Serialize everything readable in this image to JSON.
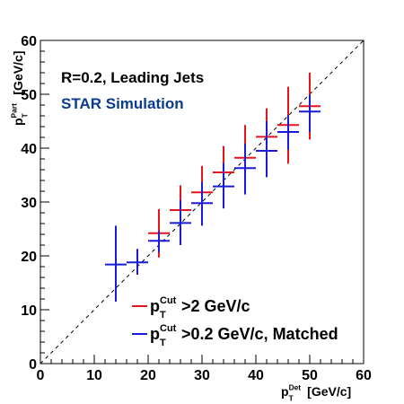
{
  "chart_data": {
    "type": "scatter",
    "title": "",
    "xlabel": {
      "main": "p",
      "sub": "T",
      "sup": "Det",
      "unit": "[GeV/c]"
    },
    "ylabel": {
      "main": "p",
      "sub": "T",
      "sup": "Part",
      "unit": "[GeV/c]"
    },
    "xlim": [
      0,
      60
    ],
    "ylim": [
      0,
      60
    ],
    "xticks": [
      0,
      10,
      20,
      30,
      40,
      50,
      60
    ],
    "yticks": [
      0,
      10,
      20,
      30,
      40,
      50,
      60
    ],
    "grid": false,
    "diagonal": true,
    "annotations": [
      {
        "text": "R=0.2, Leading Jets",
        "color": "#000000"
      },
      {
        "text": "STAR Simulation",
        "color": "#0b3b8c"
      }
    ],
    "legend_position": "bottom-right",
    "series": [
      {
        "name": "p_T^Cut>2 GeV/c",
        "legend": {
          "main": "p",
          "sub": "T",
          "sup": "Cut",
          "rest": ">2 GeV/c"
        },
        "color": "#e8141a",
        "points": [
          {
            "x": 22,
            "y": 24.2,
            "xerr": 2,
            "ylo": 19.7,
            "yhi": 28.7
          },
          {
            "x": 26,
            "y": 28.5,
            "xerr": 2,
            "ylo": 24.0,
            "yhi": 33.1
          },
          {
            "x": 30,
            "y": 31.8,
            "xerr": 2,
            "ylo": 27.0,
            "yhi": 36.7
          },
          {
            "x": 34,
            "y": 35.5,
            "xerr": 2,
            "ylo": 30.6,
            "yhi": 40.4
          },
          {
            "x": 38,
            "y": 38.2,
            "xerr": 2,
            "ylo": 32.5,
            "yhi": 44.3
          },
          {
            "x": 42,
            "y": 42.1,
            "xerr": 2,
            "ylo": 36.8,
            "yhi": 47.4
          },
          {
            "x": 46,
            "y": 44.3,
            "xerr": 2,
            "ylo": 37.1,
            "yhi": 51.4
          },
          {
            "x": 50,
            "y": 47.8,
            "xerr": 2,
            "ylo": 41.6,
            "yhi": 54.0
          }
        ]
      },
      {
        "name": "p_T^Cut>0.2 GeV/c, Matched",
        "legend": {
          "main": "p",
          "sub": "T",
          "sup": "Cut",
          "rest": ">0.2 GeV/c, Matched"
        },
        "color": "#1a1adb",
        "points": [
          {
            "x": 14,
            "y": 18.4,
            "xerr": 2,
            "ylo": 11.5,
            "yhi": 25.6
          },
          {
            "x": 18,
            "y": 18.8,
            "xerr": 2,
            "ylo": 16.5,
            "yhi": 21.3
          },
          {
            "x": 22,
            "y": 22.8,
            "xerr": 2,
            "ylo": 20.7,
            "yhi": 24.6
          },
          {
            "x": 26,
            "y": 26.1,
            "xerr": 2,
            "ylo": 22.0,
            "yhi": 30.3
          },
          {
            "x": 30,
            "y": 29.8,
            "xerr": 2,
            "ylo": 25.6,
            "yhi": 33.7
          },
          {
            "x": 34,
            "y": 32.9,
            "xerr": 2,
            "ylo": 28.8,
            "yhi": 37.2
          },
          {
            "x": 38,
            "y": 36.3,
            "xerr": 2,
            "ylo": 31.4,
            "yhi": 40.8
          },
          {
            "x": 42,
            "y": 39.5,
            "xerr": 2,
            "ylo": 34.6,
            "yhi": 45.0
          },
          {
            "x": 46,
            "y": 43.0,
            "xerr": 2,
            "ylo": 39.7,
            "yhi": 46.1
          },
          {
            "x": 50,
            "y": 46.8,
            "xerr": 2,
            "ylo": 43.0,
            "yhi": 49.9
          }
        ]
      }
    ]
  }
}
